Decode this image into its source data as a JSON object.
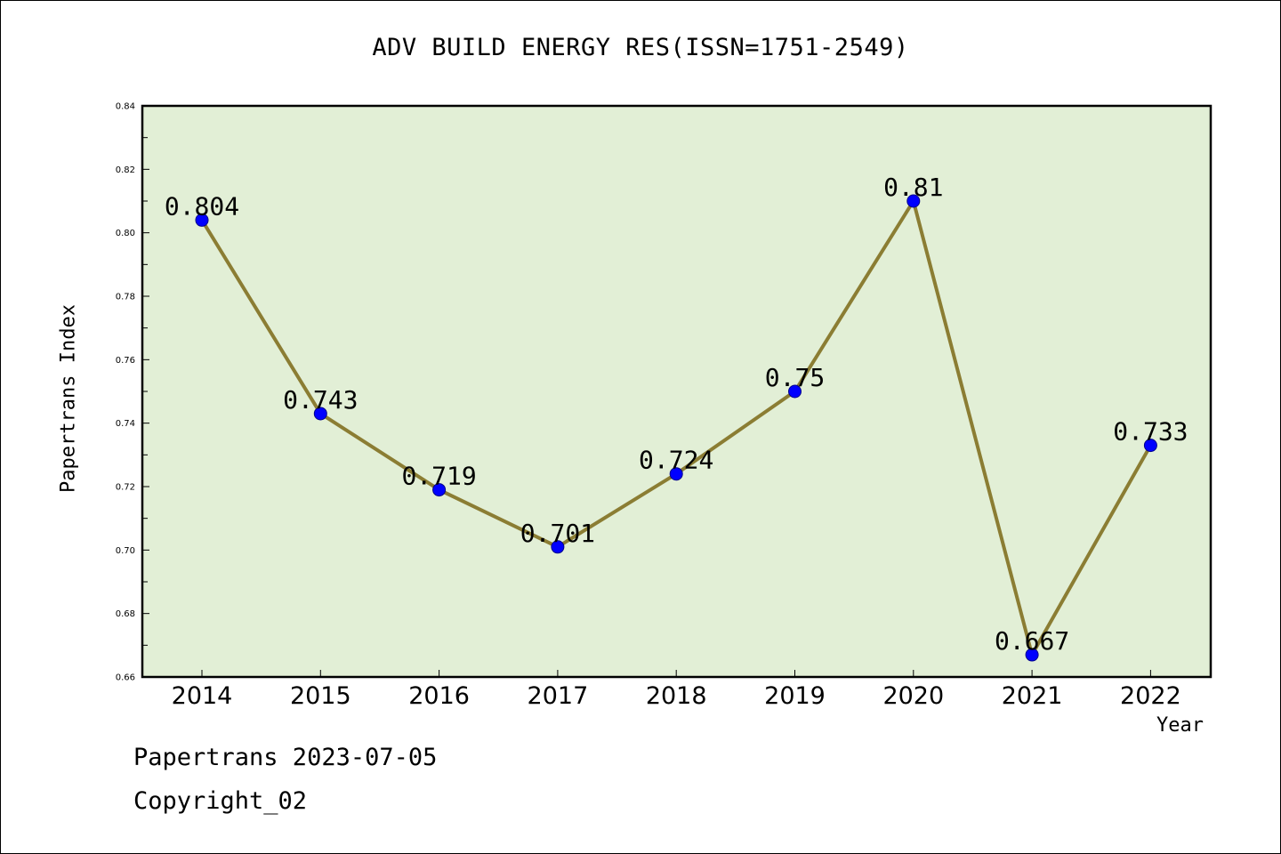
{
  "chart_data": {
    "type": "line",
    "title": "ADV BUILD ENERGY RES(ISSN=1751-2549)",
    "xlabel": "Year",
    "ylabel": "Papertrans Index",
    "categories": [
      "2014",
      "2015",
      "2016",
      "2017",
      "2018",
      "2019",
      "2020",
      "2021",
      "2022"
    ],
    "series": [
      {
        "values": [
          0.804,
          0.743,
          0.719,
          0.701,
          0.724,
          0.75,
          0.81,
          0.667,
          0.733
        ],
        "data_labels": [
          "0.804",
          "0.743",
          "0.719",
          "0.701",
          "0.724",
          "0.75",
          "0.81",
          "0.667",
          "0.733"
        ]
      }
    ],
    "ylim": [
      0.66,
      0.84
    ],
    "yticks": [
      "0.66",
      "0.68",
      "0.70",
      "0.72",
      "0.74",
      "0.76",
      "0.78",
      "0.80",
      "0.82",
      "0.84"
    ],
    "grid": false,
    "colors": {
      "plot_background": "#e2efd6",
      "line": "#8b7d33",
      "marker": "#0000ff"
    }
  },
  "footer": {
    "line1": "Papertrans 2023-07-05",
    "line2": "Copyright_02"
  }
}
